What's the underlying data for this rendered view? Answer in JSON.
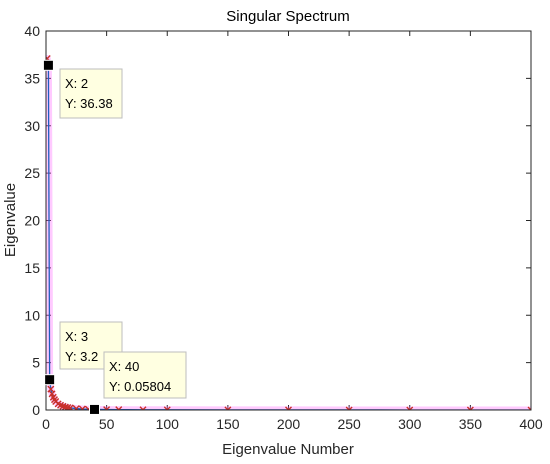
{
  "chart_data": {
    "type": "line",
    "title": "Singular Spectrum",
    "xlabel": "Eigenvalue Number",
    "ylabel": "Eigenvalue",
    "xlim": [
      0,
      400
    ],
    "ylim": [
      0,
      40
    ],
    "xticks": [
      "0",
      "50",
      "100",
      "150",
      "200",
      "250",
      "300",
      "350",
      "400"
    ],
    "yticks": [
      "0",
      "5",
      "10",
      "15",
      "20",
      "25",
      "30",
      "35",
      "40"
    ],
    "grid": false,
    "series": [
      {
        "x": [
          1,
          2,
          3,
          4,
          5,
          6,
          7,
          8,
          10,
          12,
          14,
          16,
          18,
          20,
          25,
          30,
          35,
          40,
          50,
          60,
          80,
          100,
          150,
          200,
          250,
          300,
          350,
          400
        ],
        "y": [
          37.1,
          36.38,
          3.2,
          2.2,
          1.7,
          1.35,
          1.1,
          0.9,
          0.65,
          0.5,
          0.4,
          0.32,
          0.26,
          0.22,
          0.15,
          0.1,
          0.075,
          0.05804,
          0.045,
          0.035,
          0.025,
          0.02,
          0.012,
          0.008,
          0.005,
          0.003,
          0.002,
          0.001
        ],
        "line_color": "#1f5fbf",
        "marker": "x",
        "marker_color": "#c8302a",
        "highlight_color": "#ff66ff"
      }
    ],
    "datatips": [
      {
        "x": 2,
        "y": 36.38,
        "x_text": "X: 2",
        "y_text": "Y: 36.38"
      },
      {
        "x": 3,
        "y": 3.2,
        "x_text": "X: 3",
        "y_text": "Y: 3.2"
      },
      {
        "x": 40,
        "y": 0.05804,
        "x_text": "X: 40",
        "y_text": "Y: 0.05804"
      }
    ]
  }
}
